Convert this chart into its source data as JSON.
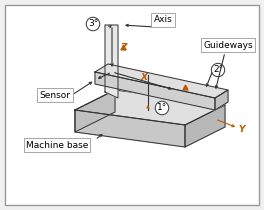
{
  "bg_color": "#f0f0f0",
  "border_color": "#999999",
  "line_color": "#333333",
  "orange_color": "#b85c00",
  "label_axis": "Axis",
  "label_guideways": "Guideways",
  "label_sensor": "Sensor",
  "label_machine_base": "Machine base",
  "label_1": "1°",
  "label_2": "2°",
  "label_3": "3°",
  "label_x": "X",
  "label_y": "Y",
  "label_z": "Z",
  "face_top_color": "#e0e0e0",
  "face_front_color": "#c8c8c8",
  "face_right_color": "#b8b8b8",
  "col_color": "#e8e8e8",
  "bridge_top_color": "#e0e0e0",
  "bridge_front_color": "#d0d0d0"
}
